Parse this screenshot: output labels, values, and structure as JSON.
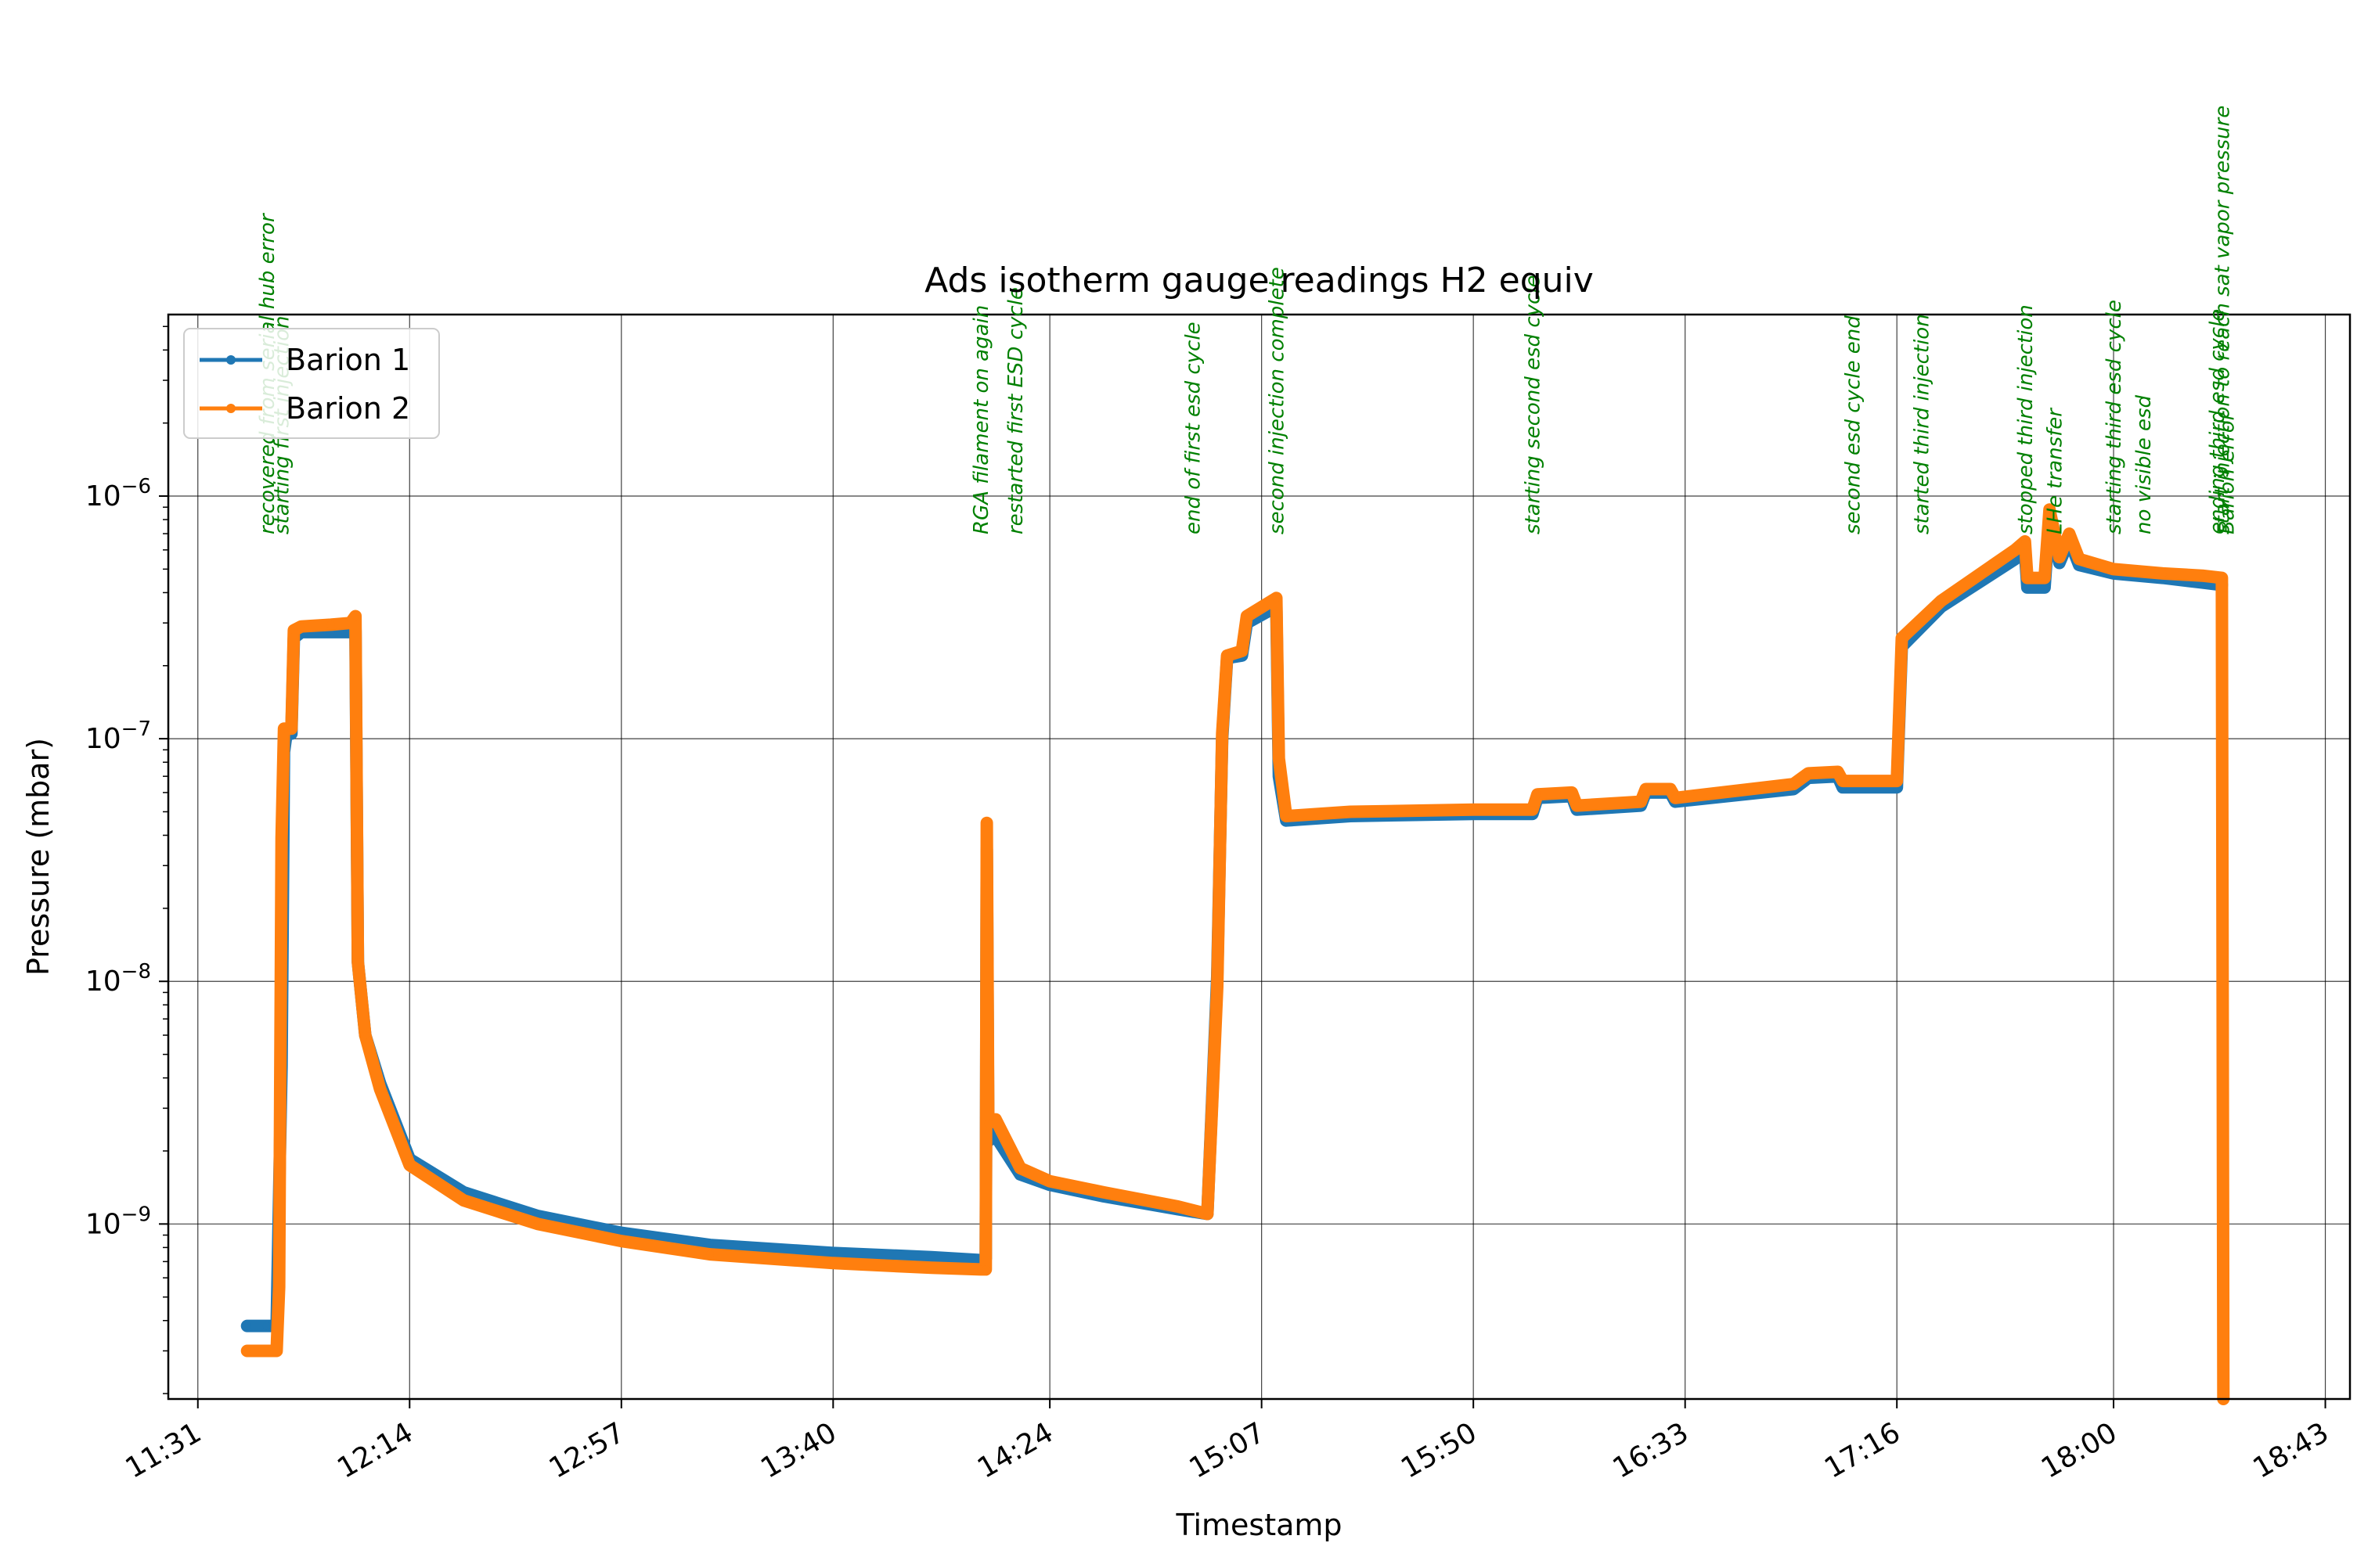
{
  "chart_data": {
    "type": "line",
    "title": "Ads isotherm gauge readings H2 equiv",
    "xlabel": "Timestamp",
    "ylabel": "Pressure (mbar)",
    "y_scale": "log",
    "xlim": [
      "11:25",
      "18:48"
    ],
    "ylim": [
      1.9e-10,
      5.6e-06
    ],
    "x_ticks": [
      "11:31",
      "12:14",
      "12:57",
      "13:40",
      "14:24",
      "15:07",
      "15:50",
      "16:33",
      "17:16",
      "18:00",
      "18:43"
    ],
    "y_ticks": [
      {
        "value": 1e-09,
        "base": "10",
        "exp": "−9"
      },
      {
        "value": 1e-08,
        "base": "10",
        "exp": "−8"
      },
      {
        "value": 1e-07,
        "base": "10",
        "exp": "−7"
      },
      {
        "value": 1e-06,
        "base": "10",
        "exp": "−6"
      }
    ],
    "grid": true,
    "legend_position": "top-left",
    "series": [
      {
        "name": "Barion 1",
        "color": "#1f77b4",
        "points": [
          [
            "11:41",
            3.8e-10
          ],
          [
            "11:45",
            3.8e-10
          ],
          [
            "11:47",
            3.8e-10
          ],
          [
            "11:48",
            4.5e-09
          ],
          [
            "11:48.5",
            8.8e-08
          ],
          [
            "11:49",
            1.05e-07
          ],
          [
            "11:50",
            1.05e-07
          ],
          [
            "11:50.5",
            2.6e-07
          ],
          [
            "11:52",
            2.75e-07
          ],
          [
            "11:58",
            2.75e-07
          ],
          [
            "12:02",
            2.75e-07
          ],
          [
            "12:03",
            2.8e-07
          ],
          [
            "12:03.5",
            1.2e-08
          ],
          [
            "12:05",
            6e-09
          ],
          [
            "12:08",
            3.8e-09
          ],
          [
            "12:14",
            1.85e-09
          ],
          [
            "12:25",
            1.35e-09
          ],
          [
            "12:40",
            1.08e-09
          ],
          [
            "12:57",
            9.2e-10
          ],
          [
            "13:15",
            8.2e-10
          ],
          [
            "13:40",
            7.6e-10
          ],
          [
            "14:00",
            7.3e-10
          ],
          [
            "14:10",
            7.1e-10
          ],
          [
            "14:11",
            7.2e-10
          ],
          [
            "14:11.2",
            3.5e-08
          ],
          [
            "14:11.5",
            2.2e-09
          ],
          [
            "14:13",
            2.3e-09
          ],
          [
            "14:18",
            1.6e-09
          ],
          [
            "14:24",
            1.45e-09
          ],
          [
            "14:35",
            1.3e-09
          ],
          [
            "14:50",
            1.15e-09
          ],
          [
            "14:56",
            1.1e-09
          ],
          [
            "14:58",
            1.05e-08
          ],
          [
            "14:59",
            1e-07
          ],
          [
            "15:00",
            2.15e-07
          ],
          [
            "15:03",
            2.2e-07
          ],
          [
            "15:04",
            3e-07
          ],
          [
            "15:10",
            3.5e-07
          ],
          [
            "15:10.5",
            7e-08
          ],
          [
            "15:12",
            4.6e-08
          ],
          [
            "15:25",
            4.8e-08
          ],
          [
            "15:50",
            4.9e-08
          ],
          [
            "16:02",
            4.9e-08
          ],
          [
            "16:03",
            5.7e-08
          ],
          [
            "16:10",
            5.8e-08
          ],
          [
            "16:11",
            5.1e-08
          ],
          [
            "16:24",
            5.3e-08
          ],
          [
            "16:25",
            6e-08
          ],
          [
            "16:30",
            6e-08
          ],
          [
            "16:31",
            5.5e-08
          ],
          [
            "16:55",
            6.2e-08
          ],
          [
            "16:58",
            6.9e-08
          ],
          [
            "17:04",
            7e-08
          ],
          [
            "17:05",
            6.3e-08
          ],
          [
            "17:16",
            6.3e-08
          ],
          [
            "17:17",
            2.4e-07
          ],
          [
            "17:25",
            3.5e-07
          ],
          [
            "17:40",
            5.5e-07
          ],
          [
            "17:42",
            5.9e-07
          ],
          [
            "17:42.5",
            4.2e-07
          ],
          [
            "17:46",
            4.2e-07
          ],
          [
            "17:47",
            8.2e-07
          ],
          [
            "17:49",
            5.3e-07
          ],
          [
            "17:51",
            6.6e-07
          ],
          [
            "17:53",
            5.2e-07
          ],
          [
            "18:00",
            4.8e-07
          ],
          [
            "18:10",
            4.6e-07
          ],
          [
            "18:18",
            4.4e-07
          ],
          [
            "18:22",
            4.3e-07
          ]
        ]
      },
      {
        "name": "Barion 2",
        "color": "#ff7f0e",
        "points": [
          [
            "11:41",
            3e-10
          ],
          [
            "11:45",
            3e-10
          ],
          [
            "11:47",
            3e-10
          ],
          [
            "11:47.5",
            5.5e-10
          ],
          [
            "11:48",
            3.9e-08
          ],
          [
            "11:48.5",
            1.1e-07
          ],
          [
            "11:50",
            1.1e-07
          ],
          [
            "11:50.5",
            2.8e-07
          ],
          [
            "11:52",
            2.9e-07
          ],
          [
            "11:58",
            2.95e-07
          ],
          [
            "12:02",
            3e-07
          ],
          [
            "12:03",
            3.2e-07
          ],
          [
            "12:03.5",
            1.2e-08
          ],
          [
            "12:05",
            6e-09
          ],
          [
            "12:08",
            3.6e-09
          ],
          [
            "12:14",
            1.75e-09
          ],
          [
            "12:25",
            1.25e-09
          ],
          [
            "12:40",
            1e-09
          ],
          [
            "12:57",
            8.5e-10
          ],
          [
            "13:15",
            7.5e-10
          ],
          [
            "13:40",
            6.9e-10
          ],
          [
            "14:00",
            6.6e-10
          ],
          [
            "14:10",
            6.5e-10
          ],
          [
            "14:11",
            6.5e-10
          ],
          [
            "14:11.2",
            4.5e-08
          ],
          [
            "14:11.5",
            2.6e-09
          ],
          [
            "14:13",
            2.7e-09
          ],
          [
            "14:18",
            1.7e-09
          ],
          [
            "14:24",
            1.5e-09
          ],
          [
            "14:35",
            1.35e-09
          ],
          [
            "14:50",
            1.18e-09
          ],
          [
            "14:56",
            1.1e-09
          ],
          [
            "14:58",
            9.5e-09
          ],
          [
            "14:59",
            1.05e-07
          ],
          [
            "15:00",
            2.2e-07
          ],
          [
            "15:03",
            2.3e-07
          ],
          [
            "15:04",
            3.2e-07
          ],
          [
            "15:10",
            3.8e-07
          ],
          [
            "15:10.5",
            8.3e-08
          ],
          [
            "15:12",
            4.8e-08
          ],
          [
            "15:25",
            5e-08
          ],
          [
            "15:50",
            5.1e-08
          ],
          [
            "16:02",
            5.1e-08
          ],
          [
            "16:03",
            5.9e-08
          ],
          [
            "16:10",
            6e-08
          ],
          [
            "16:11",
            5.3e-08
          ],
          [
            "16:24",
            5.5e-08
          ],
          [
            "16:25",
            6.2e-08
          ],
          [
            "16:30",
            6.2e-08
          ],
          [
            "16:31",
            5.7e-08
          ],
          [
            "16:55",
            6.5e-08
          ],
          [
            "16:58",
            7.2e-08
          ],
          [
            "17:04",
            7.3e-08
          ],
          [
            "17:05",
            6.7e-08
          ],
          [
            "17:16",
            6.7e-08
          ],
          [
            "17:17",
            2.6e-07
          ],
          [
            "17:25",
            3.7e-07
          ],
          [
            "17:40",
            6e-07
          ],
          [
            "17:42",
            6.5e-07
          ],
          [
            "17:42.5",
            4.6e-07
          ],
          [
            "17:46",
            4.6e-07
          ],
          [
            "17:47",
            8.8e-07
          ],
          [
            "17:49",
            5.6e-07
          ],
          [
            "17:51",
            7e-07
          ],
          [
            "17:53",
            5.5e-07
          ],
          [
            "18:00",
            5e-07
          ],
          [
            "18:10",
            4.8e-07
          ],
          [
            "18:18",
            4.7e-07
          ],
          [
            "18:22",
            4.6e-07
          ],
          [
            "18:22.3",
            1.9e-10
          ]
        ]
      }
    ],
    "annotations": [
      {
        "time": "11:45",
        "text": "recovered from serial hub error"
      },
      {
        "time": "11:48",
        "text": "starting first injection"
      },
      {
        "time": "14:10",
        "text": "RGA filament on again"
      },
      {
        "time": "14:17",
        "text": "restarted first ESD cycle"
      },
      {
        "time": "14:53",
        "text": "end of first esd cycle"
      },
      {
        "time": "15:10",
        "text": "second injection complete"
      },
      {
        "time": "16:02",
        "text": "starting second esd cycle"
      },
      {
        "time": "17:07",
        "text": "second esd cycle end"
      },
      {
        "time": "17:21",
        "text": "started third injection"
      },
      {
        "time": "17:42",
        "text": "stopped third injection"
      },
      {
        "time": "17:48",
        "text": "LHe transfer"
      },
      {
        "time": "18:00",
        "text": "starting third esd cycle"
      },
      {
        "time": "18:06",
        "text": "no visible esd"
      },
      {
        "time": "18:21",
        "text": "ending third esd cycle"
      },
      {
        "time": "18:22",
        "text": "start injection to reach sat vapor pressure"
      },
      {
        "time": "18:23",
        "text": "Barion error"
      }
    ]
  }
}
